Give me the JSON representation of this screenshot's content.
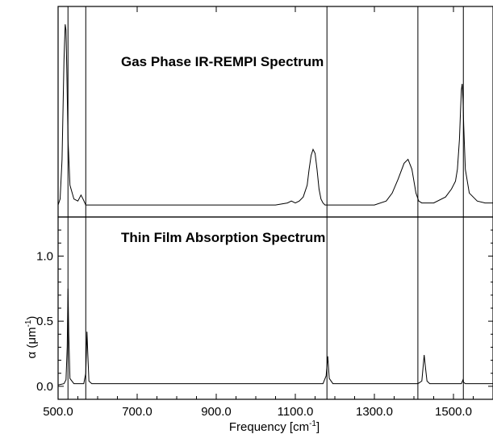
{
  "chart_data": {
    "type": "line",
    "xlabel": "Frequency [cm",
    "xlabel_sup": "-1",
    "xlabel_close": "]",
    "x_range": [
      500,
      1600
    ],
    "x_ticks": [
      500.0,
      700.0,
      900.0,
      1100.0,
      1300.0,
      1500.0
    ],
    "x_tick_labels": [
      "500.0",
      "700.0",
      "900.0",
      "1100.0",
      "1300.0",
      "1500.0"
    ],
    "vertical_markers": [
      525,
      570,
      1180,
      1410,
      1525
    ],
    "panels": [
      {
        "id": "gas",
        "title": "Gas Phase IR-REMPI Spectrum",
        "ylabel": "",
        "y_range": [
          0,
          1.0
        ],
        "y_ticks_shown": false,
        "series": [
          {
            "x": [
              500,
              505,
              510,
              515,
              518,
              520,
              522,
              525,
              530,
              540,
              550,
              558,
              563,
              570,
              600,
              700,
              800,
              900,
              1000,
              1050,
              1080,
              1090,
              1100,
              1110,
              1120,
              1130,
              1135,
              1140,
              1145,
              1150,
              1155,
              1160,
              1165,
              1170,
              1175,
              1180,
              1190,
              1250,
              1300,
              1330,
              1345,
              1360,
              1375,
              1385,
              1395,
              1405,
              1412,
              1420,
              1450,
              1480,
              1495,
              1505,
              1510,
              1515,
              1518,
              1520,
              1522,
              1524,
              1526,
              1530,
              1540,
              1560,
              1580,
              1600
            ],
            "y": [
              0.02,
              0.05,
              0.25,
              0.75,
              0.93,
              0.9,
              0.7,
              0.35,
              0.12,
              0.05,
              0.04,
              0.07,
              0.05,
              0.02,
              0.02,
              0.02,
              0.02,
              0.02,
              0.02,
              0.02,
              0.03,
              0.04,
              0.03,
              0.04,
              0.06,
              0.12,
              0.2,
              0.27,
              0.3,
              0.28,
              0.2,
              0.1,
              0.05,
              0.03,
              0.02,
              0.02,
              0.02,
              0.02,
              0.02,
              0.04,
              0.08,
              0.15,
              0.23,
              0.25,
              0.2,
              0.08,
              0.04,
              0.03,
              0.03,
              0.06,
              0.1,
              0.14,
              0.2,
              0.35,
              0.5,
              0.6,
              0.63,
              0.55,
              0.42,
              0.2,
              0.08,
              0.04,
              0.03,
              0.03
            ]
          }
        ]
      },
      {
        "id": "film",
        "title": "Thin Film Absorption Spectrum",
        "ylabel": "α (μm",
        "ylabel_sup": "-1",
        "ylabel_close": ")",
        "y_range": [
          -0.1,
          1.3
        ],
        "y_ticks": [
          0.0,
          0.5,
          1.0
        ],
        "y_tick_labels": [
          "0.0",
          "0.5",
          "1.0"
        ],
        "series": [
          {
            "x": [
              500,
              515,
              520,
              523,
              525,
              527,
              530,
              540,
              565,
              570,
              573,
              575,
              578,
              585,
              700,
              900,
              1100,
              1170,
              1178,
              1182,
              1186,
              1195,
              1300,
              1410,
              1420,
              1426,
              1429,
              1433,
              1440,
              1500,
              1520,
              1524,
              1526,
              1530,
              1560,
              1600
            ],
            "y": [
              0.01,
              0.02,
              0.05,
              0.3,
              0.75,
              0.4,
              0.06,
              0.02,
              0.02,
              0.1,
              0.42,
              0.25,
              0.04,
              0.02,
              0.02,
              0.02,
              0.02,
              0.02,
              0.08,
              0.23,
              0.06,
              0.02,
              0.02,
              0.02,
              0.04,
              0.24,
              0.15,
              0.04,
              0.02,
              0.02,
              0.02,
              0.05,
              0.03,
              0.02,
              0.02,
              0.02
            ]
          }
        ]
      }
    ]
  }
}
